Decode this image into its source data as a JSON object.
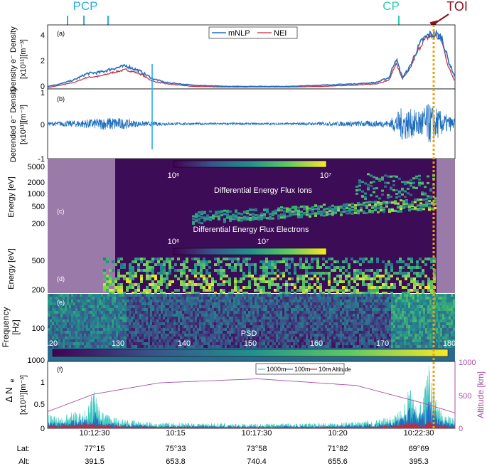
{
  "colors": {
    "mnlp": "#1f6fc0",
    "nei": "#c8283c",
    "pcp": "#29aee3",
    "cp": "#2ccbb3",
    "toi": "#8b0e1f",
    "toi_line": "#f5a000",
    "altitude": "#a650a6",
    "c1000": "#41c9bf",
    "c100": "#1f6fc0",
    "c10": "#c8283c",
    "spec_dark": "#3d0c56",
    "spec_masked": "#9a7aa8"
  },
  "annotations": {
    "pcp": "PCP",
    "cp": "CP",
    "toi": "TOI"
  },
  "chart_data": [
    {
      "panel": "a",
      "type": "line",
      "panel_label": "(a)",
      "ylabel_lines": [
        "Density e⁻ Density",
        "[x10¹¹][m⁻³]"
      ],
      "ylim": [
        0,
        5
      ],
      "yticks": [
        "0",
        "2",
        "4"
      ],
      "legend": [
        "mNLP",
        "NEI"
      ],
      "legend_position": "top-center",
      "x": [
        118,
        120,
        122,
        124,
        126,
        128,
        130,
        132,
        134,
        136,
        140,
        145,
        150,
        155,
        160,
        165,
        168,
        170,
        171,
        172,
        173,
        174,
        175,
        176,
        177,
        178,
        179,
        180
      ],
      "series": [
        {
          "name": "mNLP",
          "values": [
            0.2,
            0.4,
            0.7,
            1.2,
            1.3,
            1.6,
            1.8,
            1.4,
            0.8,
            0.5,
            0.3,
            0.2,
            0.2,
            0.2,
            0.3,
            0.4,
            0.5,
            0.9,
            2.4,
            0.9,
            1.6,
            2.8,
            3.8,
            4.2,
            4.3,
            4.0,
            2.2,
            0.9
          ]
        },
        {
          "name": "NEI",
          "values": [
            0.1,
            0.3,
            0.5,
            0.9,
            1.0,
            1.3,
            1.5,
            1.2,
            0.6,
            0.4,
            0.2,
            0.15,
            0.15,
            0.15,
            0.2,
            0.3,
            0.4,
            0.7,
            2.0,
            0.8,
            1.4,
            2.6,
            3.6,
            4.1,
            4.2,
            3.7,
            1.7,
            0.6
          ]
        }
      ]
    },
    {
      "panel": "b",
      "type": "line",
      "panel_label": "(b)",
      "ylabel_lines": [
        "Detrended e⁻ Density",
        "[x10¹¹][m⁻³]"
      ],
      "ylim": [
        -1,
        1
      ],
      "yticks": [
        "1",
        "0",
        "-1"
      ],
      "x": [
        118,
        122,
        125,
        128,
        132,
        136,
        140,
        145,
        150,
        155,
        160,
        165,
        170,
        172,
        174,
        176,
        177,
        178,
        180
      ],
      "series": [
        {
          "name": "detrended",
          "values": [
            0.05,
            0.1,
            0.15,
            0.2,
            0.08,
            0.05,
            0.03,
            0.03,
            0.03,
            0.03,
            0.05,
            0.08,
            0.1,
            0.5,
            0.4,
            0.6,
            0.5,
            0.35,
            0.15
          ]
        }
      ]
    },
    {
      "panel": "c",
      "type": "heatmap",
      "panel_label": "(c)",
      "ylabel": "Energy [eV]",
      "yticks": [
        "5000",
        "2000",
        "1000",
        "500",
        "200"
      ],
      "colorbar_ticks": [
        "10⁶",
        "10⁷"
      ],
      "title": "Differential Energy Flux Ions"
    },
    {
      "panel": "d",
      "type": "heatmap",
      "panel_label": "(d)",
      "ylabel": "Energy [eV]",
      "yticks": [
        "500",
        "200"
      ],
      "colorbar_ticks": [
        "10⁶",
        "10⁷"
      ],
      "title": "Differential Energy Flux Electrons"
    },
    {
      "panel": "e",
      "type": "heatmap",
      "panel_label": "(e)",
      "ylabel_lines": [
        "Frequency",
        "[Hz]"
      ],
      "yticks": [
        "100",
        "1000"
      ],
      "colorbar_label": "PSD",
      "colorbar_ticks": [
        "120",
        "130",
        "140",
        "150",
        "160",
        "170",
        "180"
      ]
    },
    {
      "panel": "f",
      "type": "area",
      "panel_label": "(f)",
      "ylabel_lines": [
        "Δ N",
        "e",
        "[x10¹¹][m⁻³]"
      ],
      "ylim": [
        0,
        1.4
      ],
      "yticks": [
        "0",
        "0.5",
        "1"
      ],
      "y2label": "Altitude [km]",
      "y2lim": [
        0,
        1000
      ],
      "y2ticks": [
        "0",
        "500",
        "1000"
      ],
      "legend": [
        "1000m",
        "100m",
        "10m",
        "Altitude"
      ],
      "legend_position": "top-right",
      "x": [
        118,
        120,
        122,
        124,
        125,
        126,
        128,
        130,
        135,
        140,
        150,
        160,
        165,
        168,
        170,
        172,
        173,
        175,
        176,
        177,
        178,
        180
      ],
      "series": [
        {
          "name": "1000m",
          "values": [
            0.25,
            0.2,
            0.3,
            0.35,
            0.7,
            0.3,
            0.2,
            0.15,
            0.1,
            0.1,
            0.08,
            0.1,
            0.12,
            0.15,
            0.2,
            0.35,
            0.75,
            0.4,
            1.15,
            0.6,
            0.3,
            0.15
          ]
        },
        {
          "name": "100m",
          "values": [
            0.12,
            0.1,
            0.15,
            0.2,
            0.35,
            0.15,
            0.1,
            0.08,
            0.05,
            0.05,
            0.04,
            0.05,
            0.06,
            0.08,
            0.1,
            0.2,
            0.4,
            0.25,
            0.55,
            0.35,
            0.15,
            0.08
          ]
        },
        {
          "name": "10m",
          "values": [
            0.06,
            0.05,
            0.07,
            0.08,
            0.1,
            0.07,
            0.05,
            0.04,
            0.03,
            0.03,
            0.02,
            0.03,
            0.03,
            0.04,
            0.05,
            0.08,
            0.12,
            0.09,
            0.14,
            0.1,
            0.06,
            0.04
          ]
        }
      ],
      "altitude": {
        "name": "Altitude",
        "x": [
          118,
          125,
          135,
          150,
          165,
          175,
          180
        ],
        "values": [
          250,
          510,
          680,
          740,
          640,
          380,
          230
        ]
      }
    }
  ],
  "time_axis": {
    "ticks": [
      "10:12:30",
      "10:15",
      "10:17:30",
      "10:20",
      "10:22:30"
    ],
    "lat_label": "Lat:",
    "alt_label": "Alt:",
    "lat": [
      "77°15",
      "75°33",
      "73°58",
      "71°82",
      "69°69"
    ],
    "alt": [
      "391.5",
      "653.8",
      "740.4",
      "655.6",
      "395.3"
    ]
  }
}
